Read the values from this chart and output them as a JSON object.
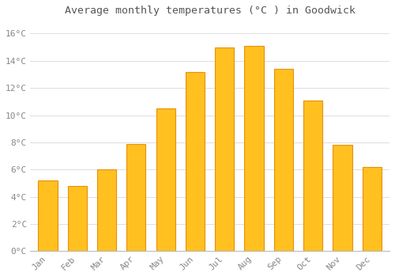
{
  "title": "Average monthly temperatures (°C ) in Goodwick",
  "months": [
    "Jan",
    "Feb",
    "Mar",
    "Apr",
    "May",
    "Jun",
    "Jul",
    "Aug",
    "Sep",
    "Oct",
    "Nov",
    "Dec"
  ],
  "temperatures": [
    5.2,
    4.8,
    6.0,
    7.9,
    10.5,
    13.2,
    15.0,
    15.1,
    13.4,
    11.1,
    7.8,
    6.2
  ],
  "bar_color": "#FFC020",
  "bar_edge_color": "#E8900A",
  "background_color": "#FFFFFF",
  "plot_bg_color": "#FFFFFF",
  "grid_color": "#DDDDDD",
  "text_color": "#888888",
  "title_color": "#555555",
  "ylim": [
    0,
    17
  ],
  "yticks": [
    0,
    2,
    4,
    6,
    8,
    10,
    12,
    14,
    16
  ],
  "ytick_labels": [
    "0°C",
    "2°C",
    "4°C",
    "6°C",
    "8°C",
    "10°C",
    "12°C",
    "14°C",
    "16°C"
  ]
}
